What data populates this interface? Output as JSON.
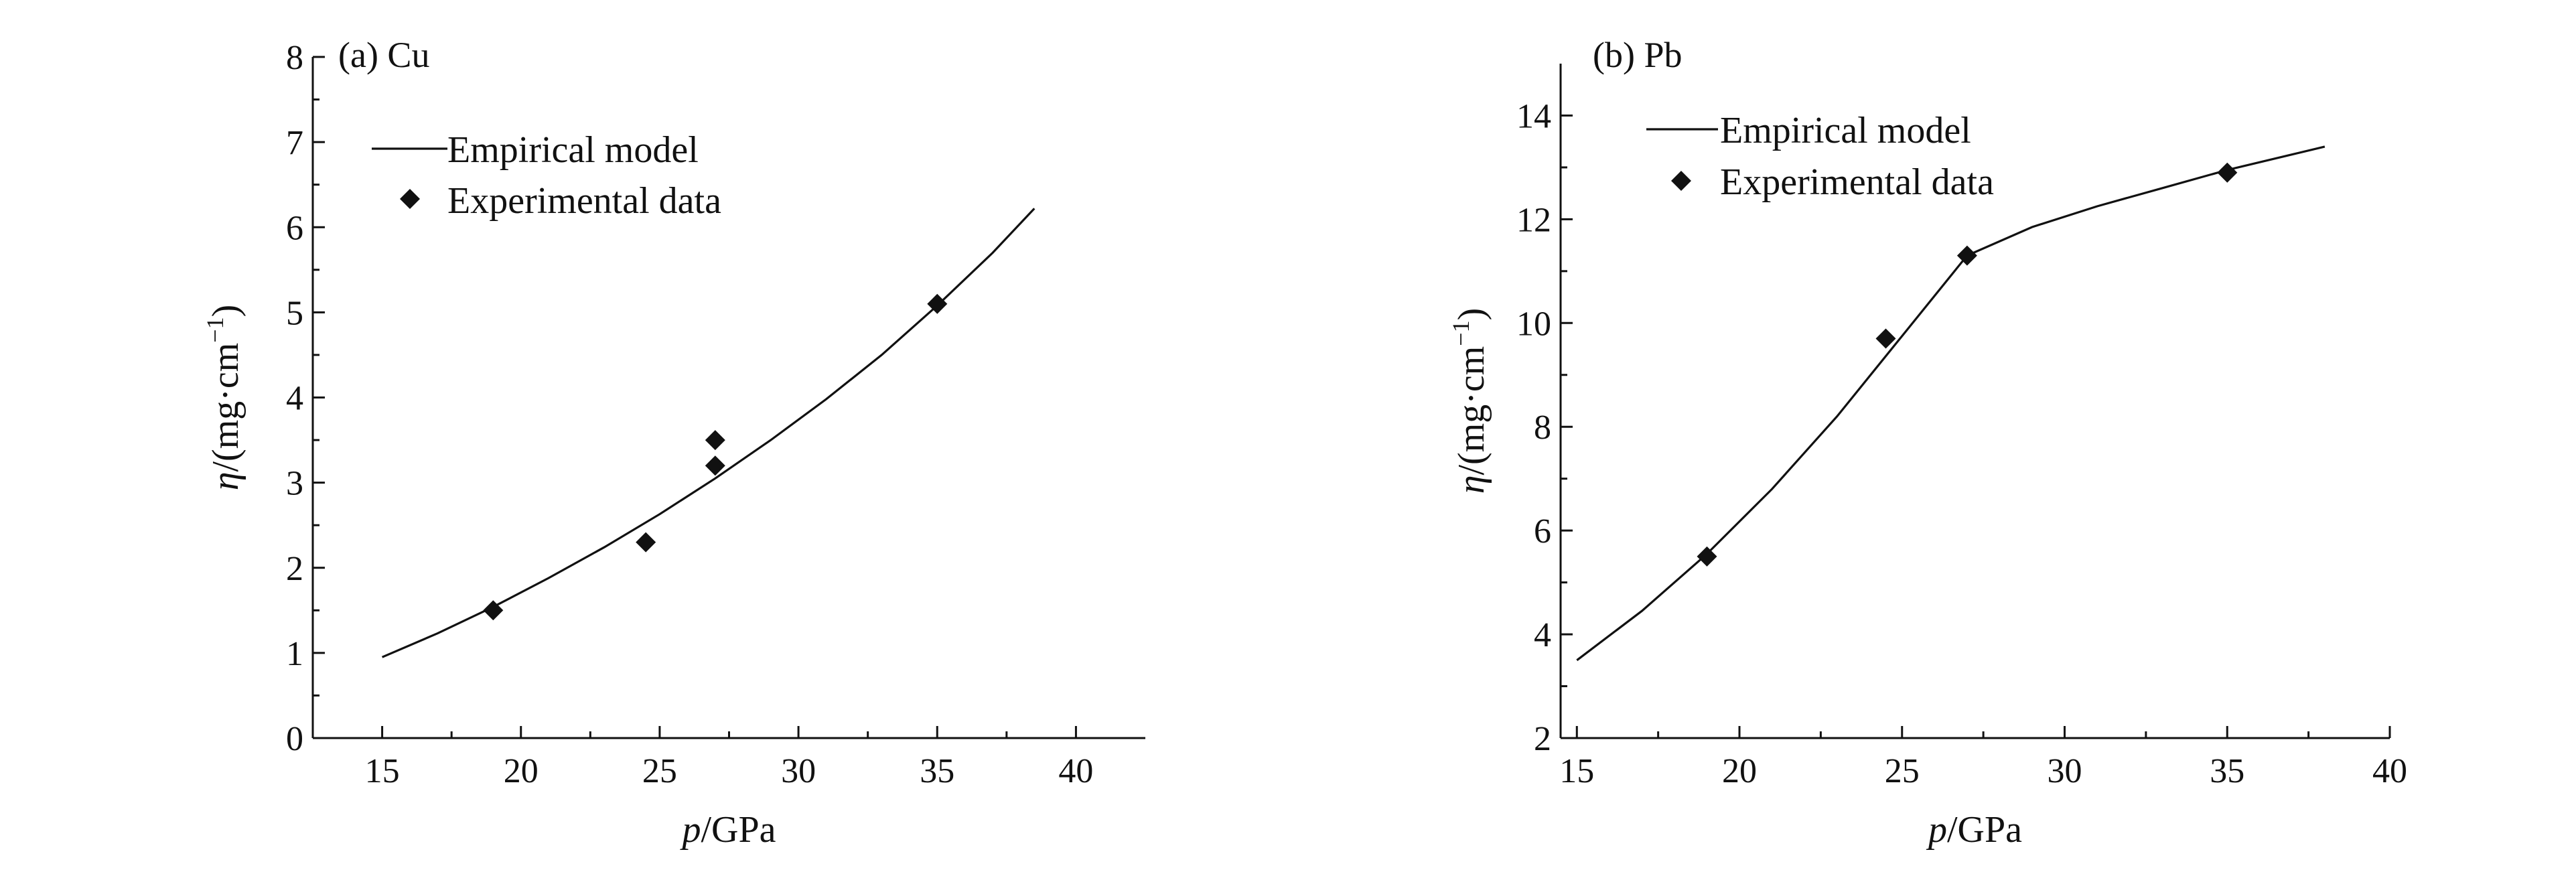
{
  "chart_data": [
    {
      "type": "scatter",
      "panel_label": "(a) Cu",
      "xlabel_var": "p",
      "xlabel_unit": "/GPa",
      "ylabel_var": "η",
      "ylabel_unit": "/(mg·cm",
      "ylabel_exp": "−1",
      "ylabel_close": ")",
      "xlim": [
        12.5,
        42.5
      ],
      "ylim": [
        0,
        8
      ],
      "xticks": [
        15,
        20,
        25,
        30,
        35,
        40
      ],
      "yticks": [
        0,
        1,
        2,
        3,
        4,
        5,
        6,
        7,
        8
      ],
      "grid": false,
      "legend_position": "top-left",
      "legend": [
        "Empirical model",
        "Experimental data"
      ],
      "series": [
        {
          "name": "Empirical model",
          "kind": "line",
          "x": [
            15,
            17,
            19,
            21,
            23,
            25,
            27,
            29,
            31,
            33,
            35,
            37,
            38.5
          ],
          "y": [
            0.95,
            1.23,
            1.54,
            1.88,
            2.24,
            2.63,
            3.05,
            3.5,
            3.98,
            4.5,
            5.08,
            5.7,
            6.22
          ]
        },
        {
          "name": "Experimental data",
          "kind": "scatter",
          "x": [
            19,
            24.5,
            27,
            27,
            35
          ],
          "y": [
            1.5,
            2.3,
            3.2,
            3.5,
            5.1
          ]
        }
      ]
    },
    {
      "type": "scatter",
      "panel_label": "(b) Pb",
      "xlabel_var": "p",
      "xlabel_unit": "/GPa",
      "ylabel_var": "η",
      "ylabel_unit": "/(mg·cm",
      "ylabel_exp": "−1",
      "ylabel_close": ")",
      "xlim": [
        14.5,
        40
      ],
      "ylim": [
        2,
        15
      ],
      "xticks": [
        15,
        20,
        25,
        30,
        35,
        40
      ],
      "yticks": [
        2,
        4,
        6,
        8,
        10,
        12,
        14
      ],
      "grid": false,
      "legend_position": "top-left",
      "legend": [
        "Empirical model",
        "Experimental data"
      ],
      "series": [
        {
          "name": "Empirical model",
          "kind": "line",
          "x": [
            15,
            17,
            19,
            21,
            23,
            25,
            27,
            29,
            31,
            33,
            35,
            37,
            38
          ],
          "y": [
            3.5,
            4.45,
            5.55,
            6.8,
            8.2,
            9.75,
            11.3,
            11.85,
            12.25,
            12.6,
            12.95,
            13.25,
            13.4
          ]
        },
        {
          "name": "Experimental data",
          "kind": "scatter",
          "x": [
            19,
            24.5,
            27,
            35
          ],
          "y": [
            5.5,
            9.7,
            11.3,
            12.9
          ]
        }
      ]
    }
  ]
}
